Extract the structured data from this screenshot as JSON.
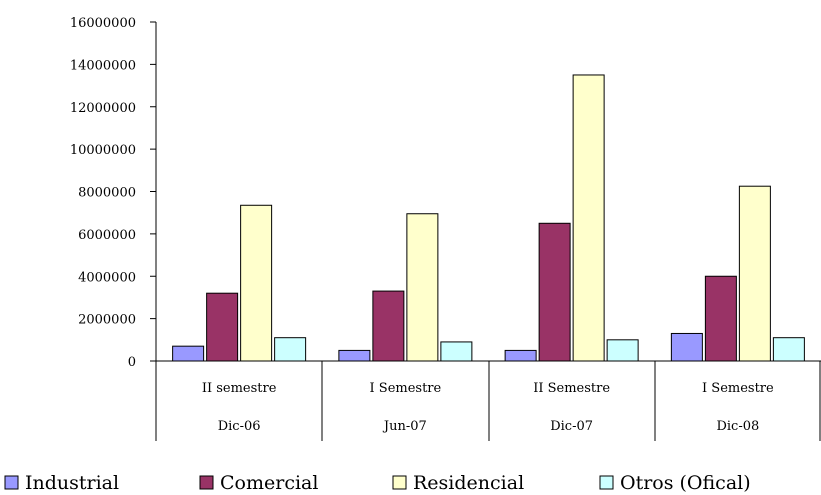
{
  "chart_data": {
    "type": "bar",
    "categories": [
      {
        "line1": "II semestre",
        "line2": "Dic-06"
      },
      {
        "line1": "I Semestre",
        "line2": "Jun-07"
      },
      {
        "line1": "II Semestre",
        "line2": "Dic-07"
      },
      {
        "line1": "I Semestre",
        "line2": "Dic-08"
      }
    ],
    "series": [
      {
        "name": "Industrial",
        "color": "#9999ff",
        "values": [
          700000,
          500000,
          500000,
          1300000
        ]
      },
      {
        "name": "Comercial",
        "color": "#993366",
        "values": [
          3200000,
          3300000,
          6500000,
          4000000
        ]
      },
      {
        "name": "Residencial",
        "color": "#ffffcc",
        "values": [
          7350000,
          6950000,
          13500000,
          8250000
        ]
      },
      {
        "name": "Otros (Ofical)",
        "color": "#ccffff",
        "values": [
          1100000,
          900000,
          1000000,
          1100000
        ]
      }
    ],
    "ylim": [
      0,
      16000000
    ],
    "yticks": [
      "0",
      "2000000",
      "4000000",
      "6000000",
      "8000000",
      "10000000",
      "12000000",
      "14000000",
      "16000000"
    ],
    "title": "",
    "xlabel": "",
    "ylabel": "",
    "grid": false,
    "legend_position": "bottom"
  }
}
